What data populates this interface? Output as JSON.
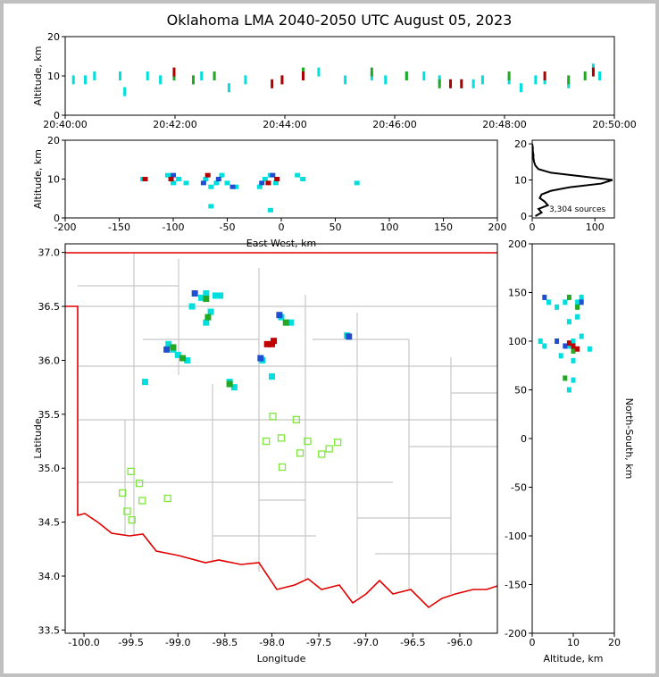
{
  "title": "Oklahoma LMA 2040-2050 UTC August 05, 2023",
  "chart_data": [
    {
      "type": "scatter",
      "ylabel": "Altitude, km",
      "xlim": [
        "20:40:00",
        "20:50:00"
      ],
      "xticks": [
        "20:40:00",
        "20:42:00",
        "20:44:00",
        "20:46:00",
        "20:48:00",
        "20:50:00"
      ],
      "ylim": [
        0,
        20
      ],
      "yticks": [
        0,
        10,
        20
      ],
      "series": [
        {
          "color": "#00dede",
          "x": [
            "20:40:09",
            "20:40:22",
            "20:40:32",
            "20:41:00",
            "20:41:05",
            "20:41:30",
            "20:41:44",
            "20:42:20",
            "20:42:29",
            "20:42:43",
            "20:42:59",
            "20:43:17",
            "20:43:57",
            "20:44:20",
            "20:44:37",
            "20:45:06",
            "20:45:35",
            "20:45:50",
            "20:46:13",
            "20:46:32",
            "20:46:49",
            "20:47:13",
            "20:47:26",
            "20:47:36",
            "20:48:05",
            "20:48:18",
            "20:48:34",
            "20:48:44",
            "20:49:10",
            "20:49:37",
            "20:49:44"
          ],
          "y": [
            9,
            9,
            10,
            10,
            6,
            10,
            9,
            9,
            10,
            10,
            7,
            9,
            9,
            10,
            11,
            9,
            10,
            9,
            10,
            10,
            9,
            8,
            8,
            9,
            9,
            7,
            9,
            9,
            8,
            12,
            10
          ]
        },
        {
          "color": "#22a822",
          "x": [
            "20:41:59",
            "20:42:20",
            "20:42:43",
            "20:44:20",
            "20:45:35",
            "20:46:13",
            "20:46:49",
            "20:48:05",
            "20:49:10",
            "20:49:28"
          ],
          "y": [
            10,
            9,
            10,
            11,
            11,
            10,
            8,
            10,
            9,
            10
          ]
        },
        {
          "color": "#b00000",
          "x": [
            "20:41:59",
            "20:43:46",
            "20:43:57",
            "20:44:20",
            "20:47:01",
            "20:47:13",
            "20:48:44",
            "20:49:37"
          ],
          "y": [
            11,
            8,
            9,
            10,
            8,
            8,
            10,
            11
          ]
        }
      ]
    },
    {
      "type": "scatter",
      "xlabel": "East-West, km",
      "ylabel": "Altitude, km",
      "xlim": [
        -200,
        200
      ],
      "xticks": [
        -200,
        -150,
        -100,
        -50,
        0,
        50,
        100,
        150,
        200
      ],
      "ylim": [
        0,
        20
      ],
      "yticks": [
        0,
        10,
        20
      ],
      "series": [
        {
          "color": "#00dede",
          "x": [
            -128,
            -105,
            -100,
            -95,
            -88,
            -70,
            -65,
            -60,
            -55,
            -50,
            -42,
            -20,
            -15,
            -10,
            -5,
            15,
            20,
            70,
            -65,
            -10
          ],
          "y": [
            10,
            11,
            9,
            10,
            9,
            10,
            8,
            9,
            11,
            9,
            8,
            8,
            10,
            11,
            9,
            11,
            10,
            9,
            3,
            2
          ]
        },
        {
          "color": "#1f4fd0",
          "x": [
            -100,
            -72,
            -58,
            -45,
            -18,
            -8
          ],
          "y": [
            11,
            9,
            10,
            8,
            9,
            11
          ]
        },
        {
          "color": "#b00000",
          "x": [
            -126,
            -102,
            -68,
            -12,
            -4
          ],
          "y": [
            10,
            10,
            11,
            9,
            10
          ]
        }
      ]
    },
    {
      "type": "line",
      "annotation": "3,304 sources",
      "xlim": [
        0,
        131
      ],
      "xticks": [
        0,
        100
      ],
      "ylim": [
        -0.5,
        21
      ],
      "yticks": [
        0,
        10,
        20
      ],
      "series": [
        {
          "color": "#000000",
          "x": [
            5,
            15,
            10,
            25,
            20,
            12,
            15,
            30,
            60,
            110,
            128,
            80,
            30,
            10,
            5,
            3,
            2,
            2,
            1,
            1,
            0
          ],
          "y": [
            0,
            1,
            2,
            3,
            4,
            5,
            6,
            7,
            8,
            9,
            10,
            11,
            12,
            13,
            14,
            15,
            16,
            17,
            18,
            19,
            20
          ]
        }
      ]
    },
    {
      "type": "scatter",
      "xlabel": "Longitude",
      "ylabel": "Latitude",
      "xlim": [
        -100.2,
        -95.6
      ],
      "xticks": [
        {
          "value": -100,
          "label": "-100.0"
        },
        -99.5,
        {
          "value": -99,
          "label": "-99.0"
        },
        -98.5,
        {
          "value": -98,
          "label": "-98.0"
        },
        -97.5,
        {
          "value": -97,
          "label": "-97.0"
        },
        -96.5,
        {
          "value": -96,
          "label": "-96.0"
        }
      ],
      "ylim": [
        33.47,
        37.08
      ],
      "yticks": [
        33.5,
        {
          "value": 34,
          "label": "34.0"
        },
        34.5,
        {
          "value": 35,
          "label": "35.0"
        },
        35.5,
        {
          "value": 36,
          "label": "36.0"
        },
        36.5,
        {
          "value": 37,
          "label": "37.0"
        }
      ],
      "series": [
        {
          "color": "#00dede",
          "x": [
            -98.75,
            -98.7,
            -98.55,
            -98.65,
            -98.7,
            -98.85,
            -99.05,
            -99.1,
            -99.0,
            -98.9,
            -98.1,
            -97.9,
            -97.8,
            -97.2,
            -99.35,
            -98.45,
            -98.4,
            -98.0,
            -98.6
          ],
          "y": [
            36.58,
            36.62,
            36.6,
            36.45,
            36.35,
            36.5,
            36.1,
            36.15,
            36.05,
            36.0,
            36.0,
            36.4,
            36.35,
            36.23,
            35.8,
            35.8,
            35.75,
            35.85,
            36.6
          ]
        },
        {
          "color": "#22a822",
          "x": [
            -98.7,
            -98.68,
            -99.05,
            -98.95,
            -97.85,
            -98.45
          ],
          "y": [
            36.57,
            36.4,
            36.12,
            36.02,
            36.35,
            35.78
          ]
        },
        {
          "color": "#1f4fd0",
          "x": [
            -98.82,
            -99.12,
            -98.12,
            -97.92,
            -97.18
          ],
          "y": [
            36.62,
            36.1,
            36.02,
            36.42,
            36.22
          ]
        },
        {
          "color": "#c00000",
          "x": [
            -98.0,
            -98.05,
            -97.98
          ],
          "y": [
            36.15,
            36.15,
            36.18
          ]
        }
      ],
      "stations": {
        "color": "#7ee83a",
        "x": [
          -97.99,
          -97.74,
          -98.06,
          -97.9,
          -97.62,
          -97.7,
          -97.47,
          -97.39,
          -97.3,
          -97.89,
          -99.5,
          -99.41,
          -99.59,
          -99.38,
          -99.11,
          -99.54,
          -99.49
        ],
        "y": [
          35.48,
          35.45,
          35.25,
          35.28,
          35.25,
          35.14,
          35.13,
          35.18,
          35.24,
          35.01,
          34.97,
          34.86,
          34.77,
          34.7,
          34.72,
          34.6,
          34.52
        ]
      }
    },
    {
      "type": "scatter",
      "xlabel": "Altitude, km",
      "ylabel": "North-South, km",
      "xlim": [
        0,
        20
      ],
      "xticks": [
        0,
        10,
        20
      ],
      "ylim": [
        -200,
        200
      ],
      "yticks": [
        -200,
        -150,
        -100,
        -50,
        0,
        50,
        100,
        150,
        200
      ],
      "series": [
        {
          "color": "#00dede",
          "x": [
            9,
            10,
            11,
            8,
            12,
            4,
            3,
            7,
            9,
            10,
            9,
            2,
            12,
            14,
            10,
            6,
            11
          ],
          "y": [
            95,
            100,
            140,
            140,
            145,
            140,
            95,
            85,
            120,
            60,
            50,
            100,
            105,
            92,
            80,
            135,
            125
          ]
        },
        {
          "color": "#22a822",
          "x": [
            9,
            11,
            8,
            10
          ],
          "y": [
            145,
            135,
            62,
            90
          ]
        },
        {
          "color": "#1f4fd0",
          "x": [
            3,
            12,
            8,
            6
          ],
          "y": [
            145,
            140,
            95,
            100
          ]
        },
        {
          "color": "#c00000",
          "x": [
            10,
            11,
            9
          ],
          "y": [
            95,
            92,
            98
          ]
        }
      ]
    }
  ]
}
